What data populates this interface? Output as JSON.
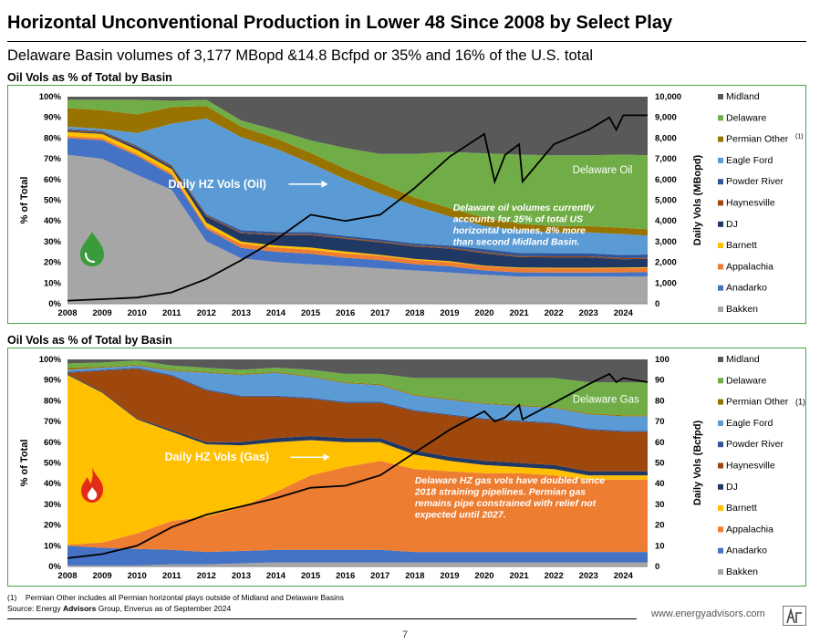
{
  "header": {
    "title": "Horizontal Unconventional Production in Lower 48 Since 2008 by Select Play",
    "subtitle": "Delaware Basin volumes of 3,177 MBopd &14.8 Bcfpd or 35% and 16% of the U.S. total"
  },
  "footer": {
    "note_marker": "(1)",
    "note": "Permian Other includes all Permian horizontal plays outside of Midland and Delaware Basins",
    "source_prefix": "Source: Energy ",
    "source_bold": "Advisors",
    "source_suffix": " Group, Enverus as of September 2024",
    "website": "www.energyadvisors.com",
    "page_number": "7"
  },
  "colors": {
    "Bakken": "#a6a6a6",
    "Anadarko": "#4472c4",
    "Appalachia": "#ed7d31",
    "Barnett": "#ffc000",
    "DJ": "#203864",
    "Haynesville": "#9e480e",
    "Powder River": "#2e5597",
    "Eagle Ford": "#5b9bd5",
    "Permian Other": "#997300",
    "Delaware": "#70ad47",
    "Midland": "#595959",
    "line": "#000000",
    "panel_border": "#4ea24e"
  },
  "chart_data": [
    {
      "type": "area",
      "stacking": "percent",
      "section_label": "Oil Vols as % of Total by Basin",
      "ylabel": "% of Total",
      "y2label": "Daily Vols (MBopd)",
      "ylim": [
        0,
        100
      ],
      "y2lim": [
        0,
        10000
      ],
      "y_ticks": [
        "0%",
        "10%",
        "20%",
        "30%",
        "40%",
        "50%",
        "60%",
        "70%",
        "80%",
        "90%",
        "100%"
      ],
      "y2_ticks": [
        "0",
        "1,000",
        "2,000",
        "3,000",
        "4,000",
        "5,000",
        "6,000",
        "7,000",
        "8,000",
        "9,000",
        "10,000"
      ],
      "x": [
        2008,
        2009,
        2010,
        2011,
        2012,
        2013,
        2014,
        2015,
        2016,
        2017,
        2018,
        2019,
        2020,
        2021,
        2022,
        2023,
        2024,
        2024.7
      ],
      "x_ticks": [
        "2008",
        "2009",
        "2010",
        "2011",
        "2012",
        "2013",
        "2014",
        "2015",
        "2016",
        "2017",
        "2018",
        "2019",
        "2020",
        "2021",
        "2022",
        "2023",
        "2024"
      ],
      "series": [
        {
          "name": "Bakken",
          "values": [
            72,
            70,
            62,
            55,
            30,
            22,
            20,
            19,
            18,
            17,
            16,
            15,
            14,
            13,
            13,
            13,
            13,
            13
          ]
        },
        {
          "name": "Anadarko",
          "values": [
            8,
            9,
            9,
            7,
            6,
            5,
            5,
            5,
            4,
            4,
            3,
            3,
            2,
            2,
            2,
            2,
            2,
            2
          ]
        },
        {
          "name": "Appalachia",
          "values": [
            1,
            1,
            1,
            1,
            1,
            2,
            2,
            2,
            2,
            2,
            2,
            2,
            2,
            2,
            2,
            2,
            2,
            2
          ]
        },
        {
          "name": "Barnett",
          "values": [
            2,
            2,
            2,
            2,
            2,
            1,
            1,
            1,
            1,
            0.5,
            0.5,
            0.5,
            0.3,
            0.3,
            0.3,
            0.3,
            0.3,
            0.3
          ]
        },
        {
          "name": "DJ",
          "values": [
            0.5,
            0.5,
            1,
            1,
            3,
            4,
            5,
            6,
            6,
            6,
            6,
            6,
            6,
            5,
            5,
            5,
            4,
            4
          ]
        },
        {
          "name": "Haynesville",
          "values": [
            0.5,
            0.5,
            0.5,
            0.5,
            0.5,
            0.5,
            0.5,
            0.5,
            0.5,
            0.5,
            0.5,
            0.5,
            0.5,
            0.5,
            0.5,
            0.5,
            0.5,
            0.5
          ]
        },
        {
          "name": "Powder River",
          "values": [
            0.5,
            0.5,
            0.5,
            0.5,
            0.5,
            1,
            1,
            1,
            1,
            1,
            1,
            1,
            1.5,
            1.5,
            1.5,
            1.5,
            1.5,
            1.5
          ]
        },
        {
          "name": "Eagle Ford",
          "values": [
            1,
            1,
            6,
            20,
            46,
            45,
            40,
            33,
            27,
            22,
            18,
            14,
            11,
            11,
            10,
            10,
            10,
            9
          ]
        },
        {
          "name": "Permian Other",
          "values": [
            9,
            9,
            9,
            8,
            6,
            5,
            5,
            5,
            5,
            5,
            4,
            4,
            4,
            3,
            3,
            3,
            3,
            3
          ]
        },
        {
          "name": "Delaware",
          "values": [
            4,
            5,
            7,
            3,
            3,
            3,
            4,
            6,
            10,
            14,
            21,
            27,
            31,
            33,
            34,
            34,
            35,
            35
          ]
        },
        {
          "name": "Midland",
          "values": [
            1.5,
            1.5,
            1.5,
            2,
            1.5,
            11.5,
            16,
            21,
            24.5,
            27.5,
            27.5,
            26.5,
            27.2,
            27.7,
            28.2,
            28.2,
            27.7,
            27.7
          ]
        }
      ],
      "line": {
        "name": "Daily HZ Vols (Oil)",
        "x": [
          2008,
          2009,
          2010,
          2011,
          2012,
          2013,
          2014,
          2015,
          2016,
          2017,
          2018,
          2019,
          2020,
          2020.3,
          2020.6,
          2021,
          2021.1,
          2022,
          2023,
          2023.6,
          2023.8,
          2024,
          2024.7
        ],
        "values": [
          150,
          220,
          300,
          550,
          1200,
          2100,
          3100,
          4300,
          4000,
          4300,
          5600,
          7100,
          8200,
          5900,
          7200,
          7700,
          5900,
          7700,
          8400,
          9000,
          8400,
          9100,
          9100
        ]
      },
      "annotations": [
        {
          "text": "Daily HZ Vols (Oil)",
          "x": 2010.9,
          "y": 56
        },
        {
          "text": "Delaware Oil",
          "x": 2023.4,
          "y": 63
        },
        {
          "lines": [
            "Delaware oil volumes currently",
            "accounts for 35% of total US",
            "horizontal volumes, 8% more",
            "than second Midland Basin."
          ],
          "x": 2019.1,
          "y": 45
        }
      ],
      "legend_position": "right"
    },
    {
      "type": "area",
      "stacking": "percent",
      "section_label": "Oil Vols as % of Total by Basin",
      "ylabel": "% of Total",
      "y2label": "Daily Vols (Bcfpd)",
      "ylim": [
        0,
        100
      ],
      "y2lim": [
        0,
        100
      ],
      "y_ticks": [
        "0%",
        "10%",
        "20%",
        "30%",
        "40%",
        "50%",
        "60%",
        "70%",
        "80%",
        "90%",
        "100%"
      ],
      "y2_ticks": [
        "0",
        "10",
        "20",
        "30",
        "40",
        "50",
        "60",
        "70",
        "80",
        "90",
        "100"
      ],
      "x": [
        2008,
        2009,
        2010,
        2011,
        2012,
        2013,
        2014,
        2015,
        2016,
        2017,
        2018,
        2019,
        2020,
        2021,
        2022,
        2023,
        2024,
        2024.7
      ],
      "x_ticks": [
        "2008",
        "2009",
        "2010",
        "2011",
        "2012",
        "2013",
        "2014",
        "2015",
        "2016",
        "2017",
        "2018",
        "2019",
        "2020",
        "2021",
        "2022",
        "2023",
        "2024"
      ],
      "series": [
        {
          "name": "Bakken",
          "values": [
            0.5,
            0.5,
            0.5,
            1,
            1,
            1.5,
            2,
            2,
            2,
            2,
            2,
            2,
            2,
            2,
            2,
            2,
            2,
            2
          ]
        },
        {
          "name": "Anadarko",
          "values": [
            9.5,
            8.5,
            8,
            7,
            6,
            6,
            6,
            6,
            6,
            6,
            5,
            5,
            5,
            5,
            5,
            5,
            5,
            5
          ]
        },
        {
          "name": "Appalachia",
          "values": [
            0.5,
            2.5,
            7.5,
            14,
            17,
            21,
            28,
            36,
            40,
            43,
            40,
            39,
            38,
            38,
            37,
            35,
            35,
            35
          ]
        },
        {
          "name": "Barnett",
          "values": [
            82,
            72,
            55,
            43,
            35,
            30,
            24,
            17,
            12,
            9,
            7,
            5,
            4,
            3,
            3,
            2,
            2,
            2
          ]
        },
        {
          "name": "DJ",
          "values": [
            0.5,
            0.5,
            0.5,
            1,
            1,
            1.5,
            2,
            2,
            2,
            2,
            2,
            2,
            2,
            2,
            2,
            2,
            2,
            2
          ]
        },
        {
          "name": "Haynesville",
          "values": [
            0.5,
            10,
            24,
            26,
            25,
            22,
            20,
            18,
            17,
            17,
            19,
            20,
            20,
            20,
            20,
            20,
            19,
            19
          ]
        },
        {
          "name": "Powder River",
          "values": [
            0.5,
            0.5,
            0.5,
            0.5,
            0.5,
            0.5,
            0.5,
            0.5,
            0.5,
            0.5,
            0.5,
            0.5,
            0.5,
            0.5,
            0.5,
            0.5,
            0.5,
            0.5
          ]
        },
        {
          "name": "Eagle Ford",
          "values": [
            1,
            1,
            1,
            2,
            8,
            10,
            11,
            10,
            9,
            8,
            7,
            7,
            7,
            7,
            7,
            7,
            7,
            7
          ]
        },
        {
          "name": "Permian Other",
          "values": [
            1,
            0.5,
            0.5,
            0.5,
            0.5,
            0.5,
            0.5,
            0.5,
            0.5,
            0.5,
            0.5,
            0.5,
            0.5,
            0.5,
            0.5,
            0.5,
            0.5,
            0.5
          ]
        },
        {
          "name": "Delaware",
          "values": [
            2,
            2,
            2,
            2,
            2,
            2,
            2,
            3,
            4,
            5,
            8,
            10,
            12,
            13,
            14,
            15,
            16,
            16
          ]
        },
        {
          "name": "Midland",
          "values": [
            2,
            1.5,
            0.5,
            3,
            4,
            5,
            4,
            5,
            7,
            7,
            9,
            9,
            9,
            9,
            9,
            11,
            11,
            11
          ]
        }
      ],
      "line": {
        "name": "Daily HZ Vols (Gas)",
        "x": [
          2008,
          2009,
          2010,
          2011,
          2012,
          2013,
          2014,
          2015,
          2016,
          2017,
          2018,
          2019,
          2020,
          2020.3,
          2020.6,
          2021,
          2021.1,
          2022,
          2023,
          2023.6,
          2023.8,
          2024,
          2024.7
        ],
        "values": [
          4,
          6,
          10,
          19,
          25,
          29,
          33,
          38,
          39,
          44,
          55,
          66,
          75,
          70,
          72,
          78,
          71,
          79,
          88,
          93,
          89,
          91,
          89
        ]
      },
      "annotations": [
        {
          "text": "Daily HZ Vols (Gas)",
          "x": 2010.8,
          "y": 51
        },
        {
          "text": "Delaware Gas",
          "x": 2023.5,
          "y": 79
        },
        {
          "lines": [
            "Delaware HZ gas vols have doubled since",
            "2018 straining pipelines. Permian gas",
            "remains pipe constrained with relief not",
            "expected until 2027."
          ],
          "x": 2018,
          "y": 40
        }
      ],
      "legend_position": "right"
    }
  ]
}
